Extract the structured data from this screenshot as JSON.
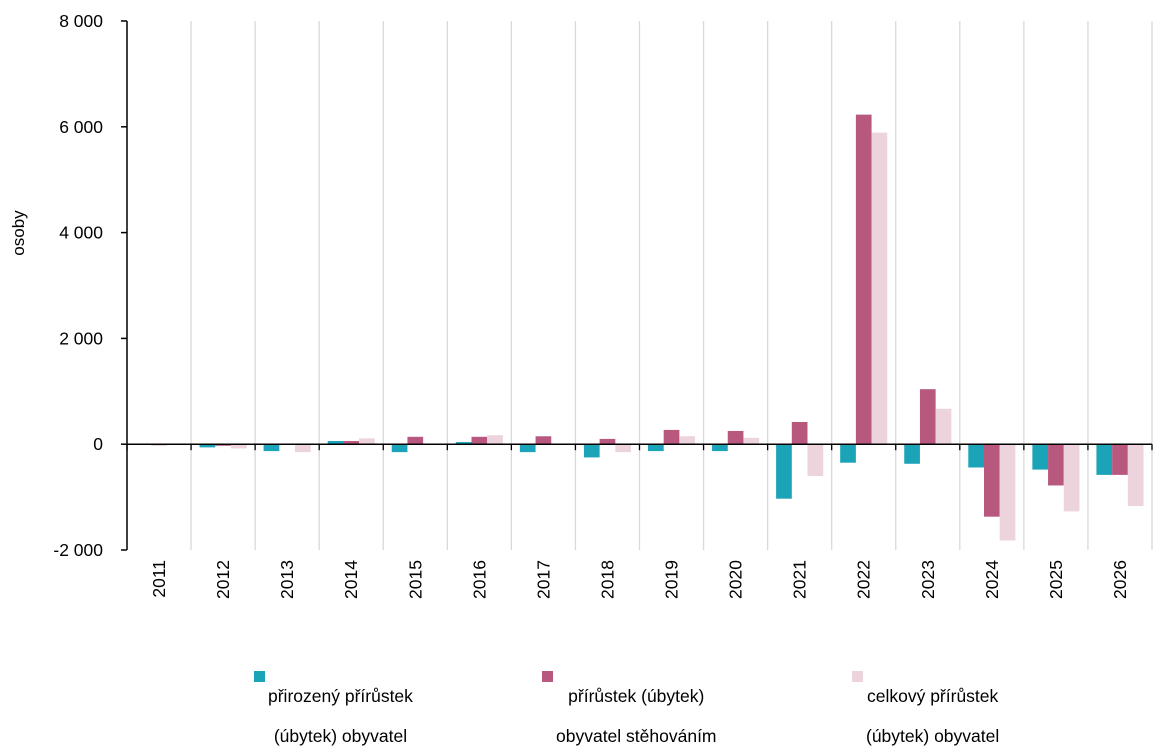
{
  "chart_data": {
    "type": "bar",
    "title": "",
    "xlabel": "",
    "ylabel": "osoby",
    "ylim": [
      -2000,
      8000
    ],
    "yticks": [
      -2000,
      0,
      2000,
      4000,
      6000,
      8000
    ],
    "ytick_labels": [
      "-2 000",
      "0",
      "2 000",
      "4 000",
      "6 000",
      "8 000"
    ],
    "grid": "vertical",
    "legend_position": "bottom",
    "categories": [
      "2011",
      "2012",
      "2013",
      "2014",
      "2015",
      "2016",
      "2017",
      "2018",
      "2019",
      "2020",
      "2021",
      "2022",
      "2023",
      "2024",
      "2025",
      "2026"
    ],
    "series": [
      {
        "name": "přirozený přírůstek (úbytek) obyvatel",
        "legend_lines": [
          "přirozený přírůstek",
          "(úbytek) obyvatel"
        ],
        "color": "#1ba3b8",
        "values": [
          0,
          -60,
          -130,
          60,
          -150,
          40,
          -150,
          -250,
          -130,
          -130,
          -1030,
          -350,
          -370,
          -440,
          -480,
          -580
        ]
      },
      {
        "name": "přírůstek (úbytek) obyvatel stěhováním",
        "legend_lines": [
          "přírůstek (úbytek)",
          "obyvatel stěhováním"
        ],
        "color": "#b8587f",
        "values": [
          -20,
          -30,
          0,
          60,
          140,
          140,
          150,
          100,
          270,
          250,
          420,
          6230,
          1040,
          -1370,
          -780,
          -580
        ]
      },
      {
        "name": "celkový přírůstek (úbytek) obyvatel",
        "legend_lines": [
          "celkový přírůstek",
          "(úbytek) obyvatel"
        ],
        "color": "#ecd3dc",
        "values": [
          0,
          -80,
          -150,
          110,
          0,
          170,
          0,
          -150,
          150,
          120,
          -600,
          5890,
          670,
          -1820,
          -1270,
          -1170
        ]
      }
    ]
  }
}
